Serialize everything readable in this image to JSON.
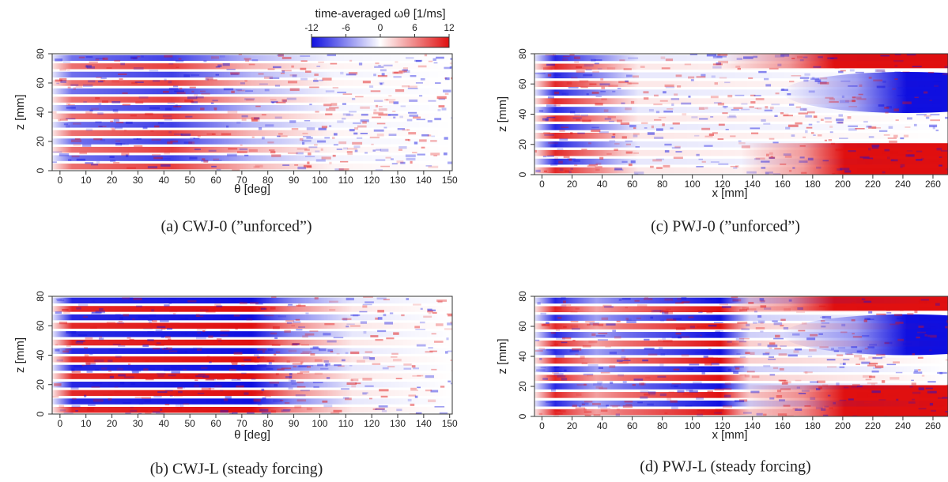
{
  "chart_data": [
    {
      "type": "heatmap",
      "title": "(a) CWJ-0 (”unforced”)",
      "xlabel": "θ [deg]",
      "ylabel": "z [mm]",
      "xlim": [
        -3,
        151
      ],
      "xticks": [
        0,
        10,
        20,
        30,
        40,
        50,
        60,
        70,
        80,
        90,
        100,
        110,
        120,
        130,
        140,
        150
      ],
      "ylim": [
        0,
        80
      ],
      "yticks": [
        0,
        20,
        40,
        60,
        80
      ],
      "colorbar": {
        "label": "time-averaged ωθ [1/ms]",
        "lim": [
          -12,
          12
        ],
        "ticks": [
          -12,
          -6,
          0,
          6,
          12
        ],
        "colors": [
          "#1010e0",
          "#ffffff",
          "#e01010"
        ]
      }
    },
    {
      "type": "heatmap",
      "title": "(b) CWJ-L (steady forcing)",
      "xlabel": "θ [deg]",
      "ylabel": "z [mm]",
      "xlim": [
        -3,
        151
      ],
      "xticks": [
        0,
        10,
        20,
        30,
        40,
        50,
        60,
        70,
        80,
        90,
        100,
        110,
        120,
        130,
        140,
        150
      ],
      "ylim": [
        0,
        80
      ],
      "yticks": [
        0,
        20,
        40,
        60,
        80
      ]
    },
    {
      "type": "heatmap",
      "title": "(c) PWJ-0 (”unforced”)",
      "xlabel": "x [mm]",
      "ylabel": "z [mm]",
      "xlim": [
        -5,
        270
      ],
      "xticks": [
        0,
        20,
        40,
        60,
        80,
        100,
        120,
        140,
        160,
        180,
        200,
        220,
        240,
        260
      ],
      "ylim": [
        0,
        80
      ],
      "yticks": [
        0,
        20,
        40,
        60,
        80
      ]
    },
    {
      "type": "heatmap",
      "title": "(d) PWJ-L (steady forcing)",
      "xlabel": "x [mm]",
      "ylabel": "z [mm]",
      "xlim": [
        -5,
        270
      ],
      "xticks": [
        0,
        20,
        40,
        60,
        80,
        100,
        120,
        140,
        160,
        180,
        200,
        220,
        240,
        260
      ],
      "ylim": [
        0,
        80
      ],
      "yticks": [
        0,
        20,
        40,
        60,
        80
      ]
    }
  ]
}
